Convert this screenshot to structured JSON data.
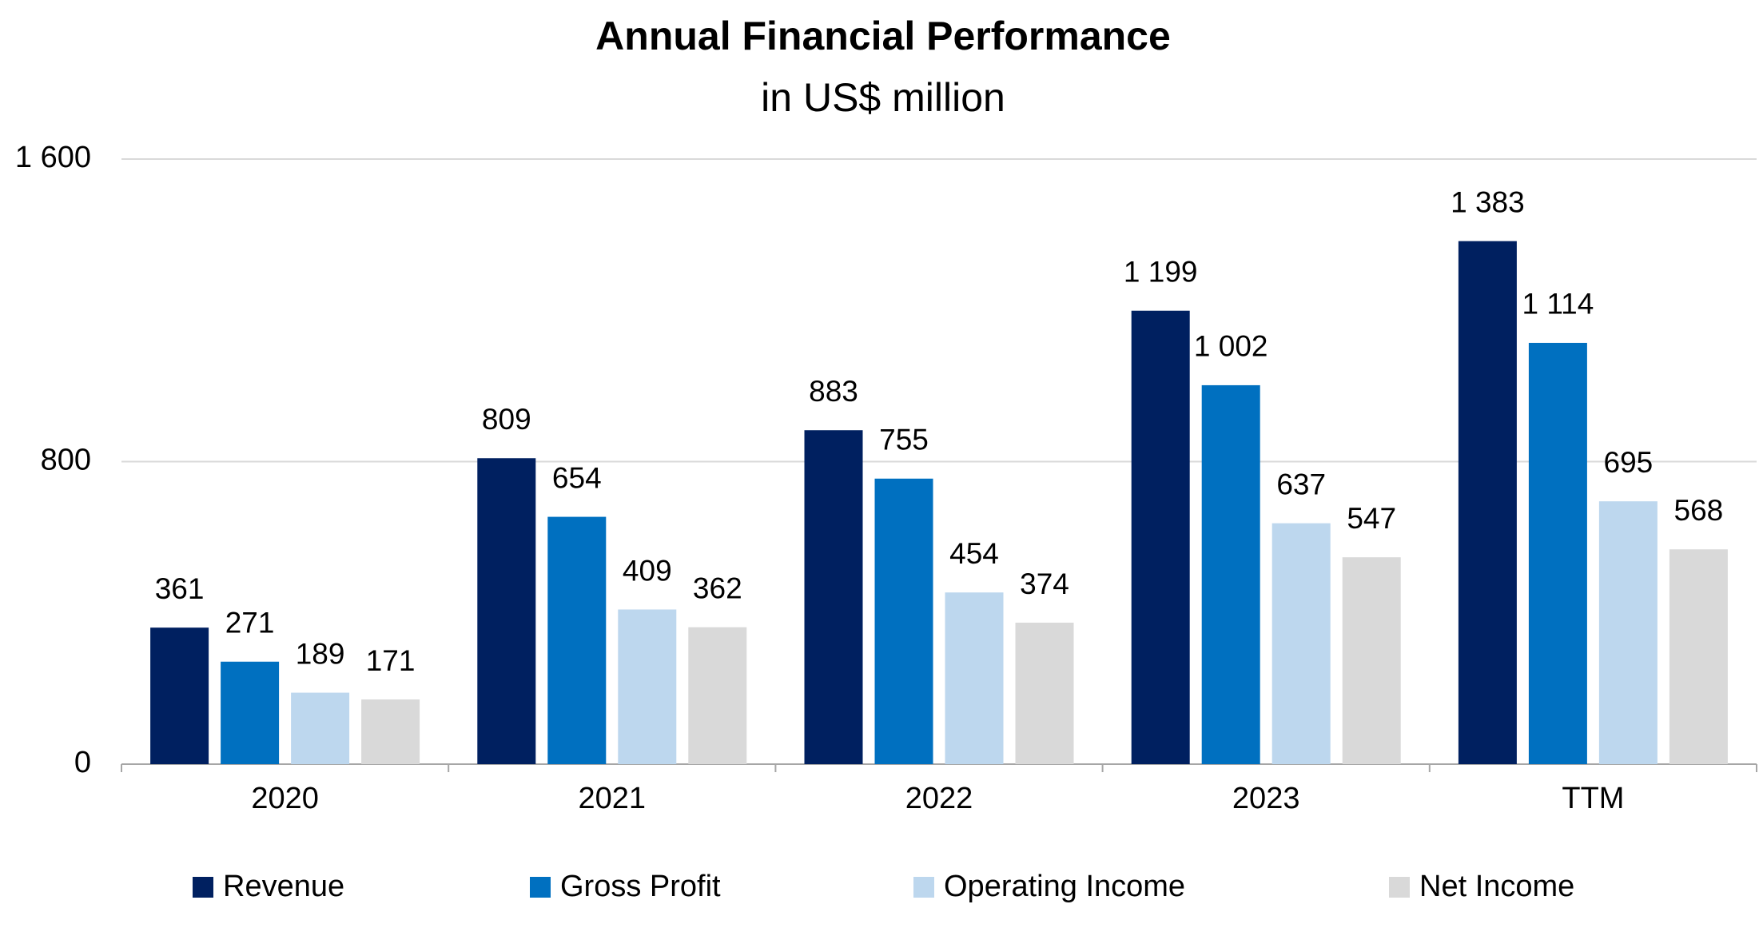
{
  "chart_data": {
    "type": "bar",
    "title": "Annual Financial Performance",
    "subtitle": "in US$ million",
    "categories": [
      "2020",
      "2021",
      "2022",
      "2023",
      "TTM"
    ],
    "series": [
      {
        "name": "Revenue",
        "color": "#002060",
        "values": [
          361,
          809,
          883,
          1199,
          1383
        ],
        "value_labels": [
          "361",
          "809",
          "883",
          "1 199",
          "1 383"
        ]
      },
      {
        "name": "Gross Profit",
        "color": "#0070c0",
        "values": [
          271,
          654,
          755,
          1002,
          1114
        ],
        "value_labels": [
          "271",
          "654",
          "755",
          "1 002",
          "1 114"
        ]
      },
      {
        "name": "Operating Income",
        "color": "#bdd7ee",
        "values": [
          189,
          409,
          454,
          637,
          695
        ],
        "value_labels": [
          "189",
          "409",
          "454",
          "637",
          "695"
        ]
      },
      {
        "name": "Net Income",
        "color": "#d9d9d9",
        "values": [
          171,
          362,
          374,
          547,
          568
        ],
        "value_labels": [
          "171",
          "362",
          "374",
          "547",
          "568"
        ]
      }
    ],
    "ylim": [
      0,
      1600
    ],
    "yticks": [
      0,
      800,
      {
        "value": 1600,
        "label": "1 600"
      }
    ],
    "grid": true,
    "legend": "bottom"
  }
}
